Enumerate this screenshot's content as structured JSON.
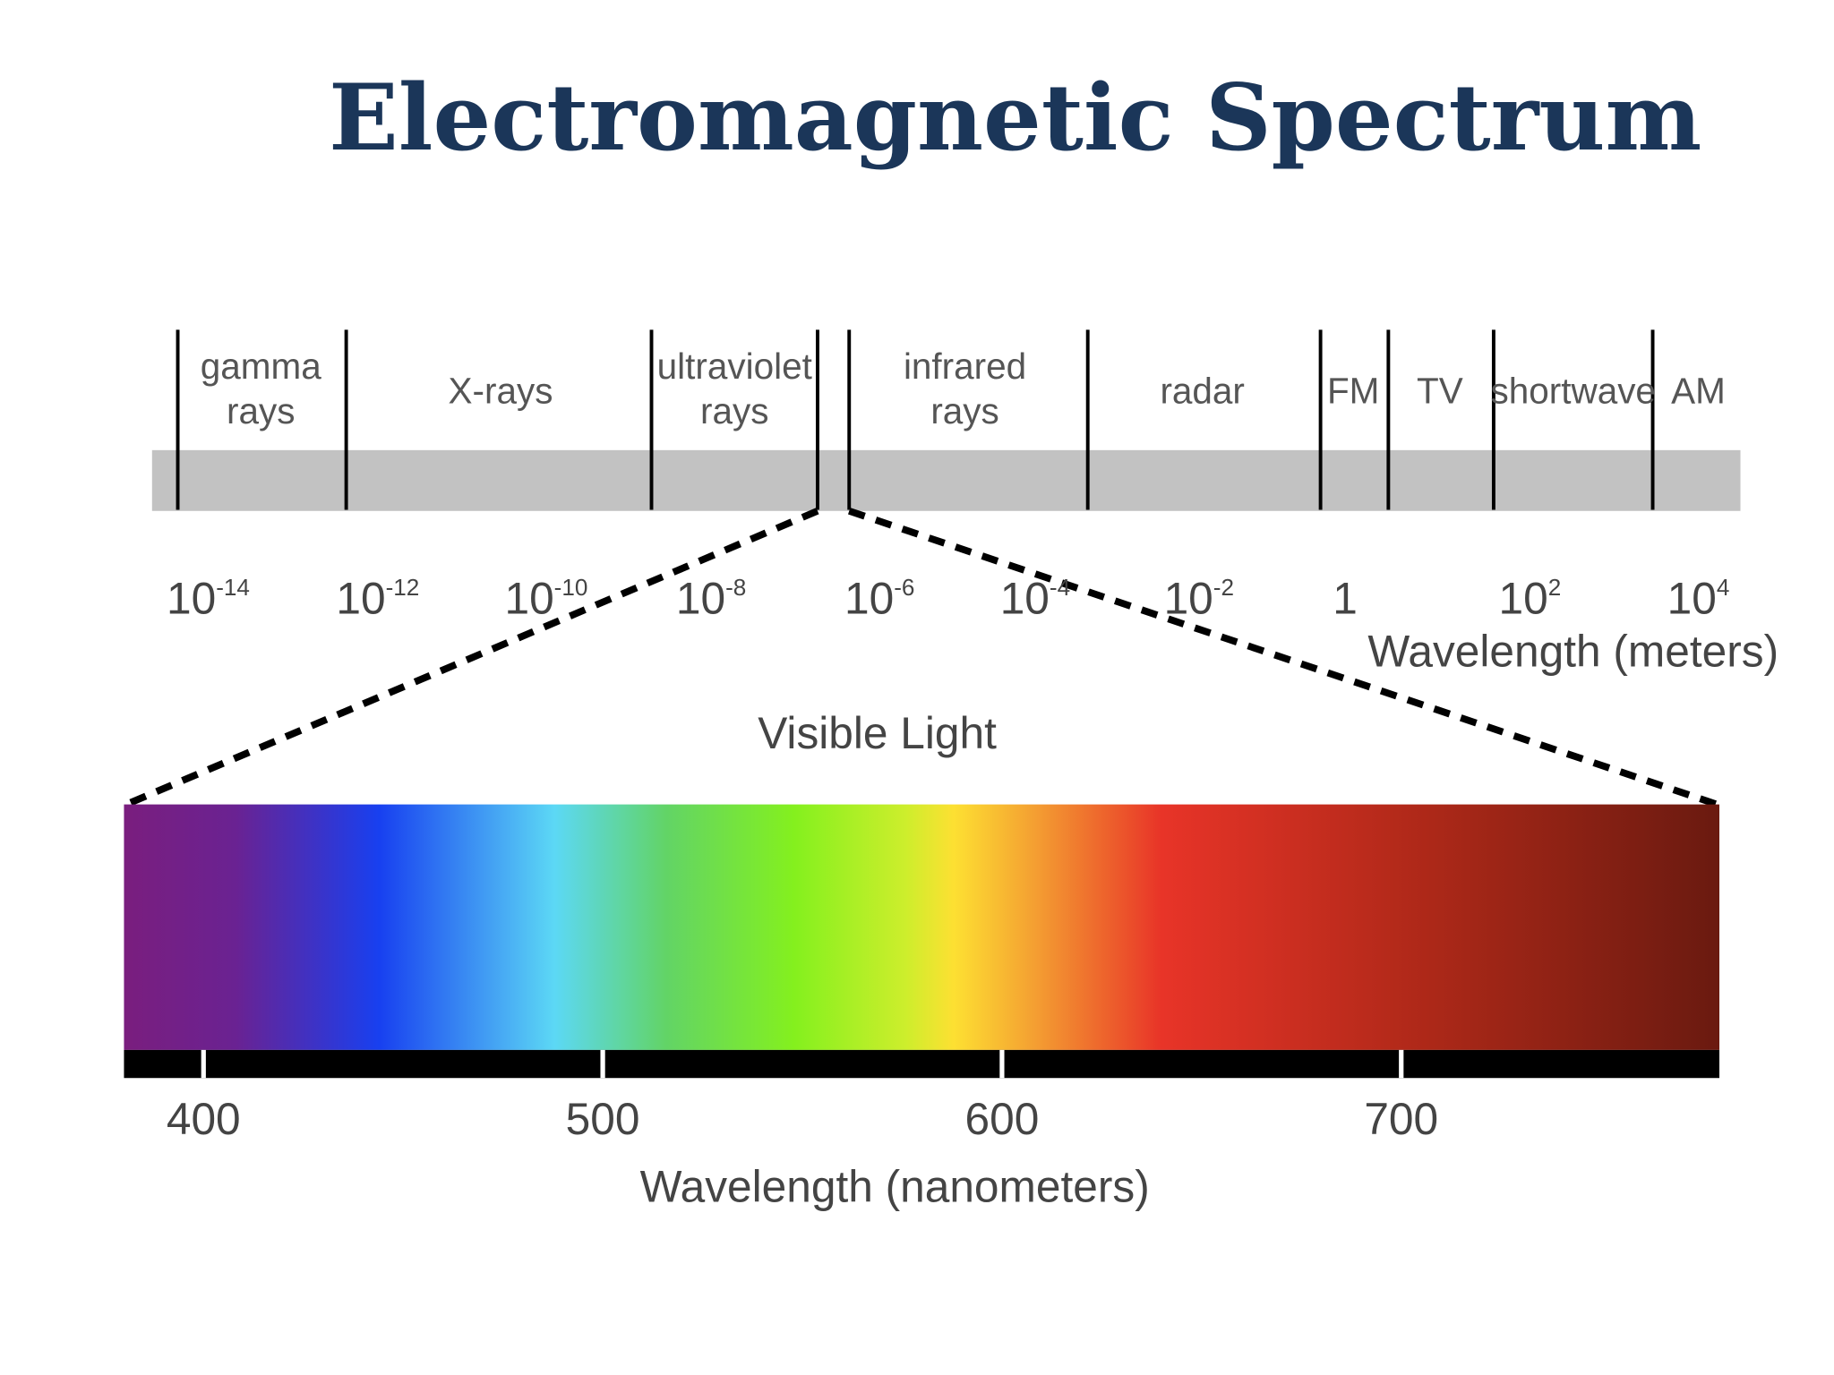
{
  "title": "Electromagnetic Spectrum",
  "bands": [
    {
      "label": [
        "gamma",
        "rays"
      ]
    },
    {
      "label": [
        "X-rays"
      ]
    },
    {
      "label": [
        "ultraviolet",
        "rays"
      ]
    },
    {
      "label": [
        "infrared",
        "rays"
      ]
    },
    {
      "label": [
        "radar"
      ]
    },
    {
      "label": [
        "FM"
      ]
    },
    {
      "label": [
        "TV"
      ]
    },
    {
      "label": [
        "shortwave"
      ]
    },
    {
      "label": [
        "AM"
      ]
    }
  ],
  "meter_ticks": [
    {
      "base": "10",
      "exponent": "-14"
    },
    {
      "base": "10",
      "exponent": "-12"
    },
    {
      "base": "10",
      "exponent": "-10"
    },
    {
      "base": "10",
      "exponent": "-8"
    },
    {
      "base": "10",
      "exponent": "-6"
    },
    {
      "base": "10",
      "exponent": "-4"
    },
    {
      "base": "10",
      "exponent": "-2"
    },
    {
      "base": "1"
    },
    {
      "base": "10",
      "exponent": "2"
    },
    {
      "base": "10",
      "exponent": "4"
    }
  ],
  "meter_axis_label": "Wavelength (meters)",
  "visible_label": "Visible Light",
  "nm_ticks": [
    400,
    500,
    600,
    700
  ],
  "nm_axis_label": "Wavelength (nanometers)"
}
